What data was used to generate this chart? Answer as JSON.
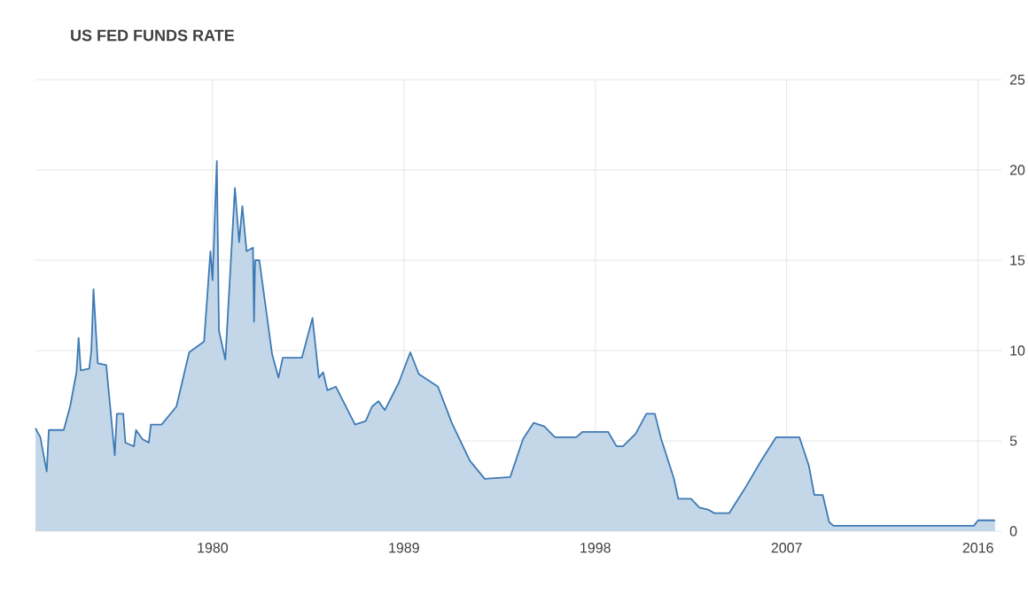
{
  "chart_data": {
    "type": "area",
    "title": "US FED FUNDS RATE",
    "x": [
      1971.67,
      1971.9,
      1972.2,
      1972.3,
      1973.0,
      1973.3,
      1973.6,
      1973.7,
      1973.8,
      1974.2,
      1974.3,
      1974.4,
      1974.6,
      1975.0,
      1975.4,
      1975.5,
      1975.8,
      1975.9,
      1976.3,
      1976.4,
      1976.7,
      1977.0,
      1977.1,
      1977.6,
      1978.3,
      1978.9,
      1979.6,
      1979.9,
      1980.0,
      1980.2,
      1980.3,
      1980.6,
      1980.8,
      1981.05,
      1981.25,
      1981.4,
      1981.6,
      1981.9,
      1981.95,
      1982.0,
      1982.2,
      1982.5,
      1982.8,
      1983.1,
      1983.3,
      1984.2,
      1984.7,
      1985.0,
      1985.2,
      1985.4,
      1985.8,
      1986.7,
      1987.2,
      1987.5,
      1987.8,
      1988.1,
      1988.75,
      1989.3,
      1989.7,
      1990.6,
      1991.25,
      1992.1,
      1992.8,
      1994.0,
      1994.6,
      1995.1,
      1995.6,
      1996.1,
      1997.1,
      1997.4,
      1998.6,
      1999.0,
      1999.3,
      1999.9,
      2000.4,
      2000.8,
      2001.1,
      2001.7,
      2001.9,
      2002.5,
      2002.9,
      2003.3,
      2003.6,
      2004.3,
      2005.0,
      2005.8,
      2006.5,
      2007.6,
      2008.05,
      2008.3,
      2008.7,
      2009.0,
      2009.2,
      2015.8,
      2016.0,
      2016.8
    ],
    "series": [
      {
        "color": "#3d7ab5",
        "values": [
          5.7,
          5.2,
          3.3,
          5.6,
          5.6,
          6.9,
          8.8,
          10.7,
          8.9,
          9.0,
          10.0,
          13.4,
          9.3,
          9.2,
          4.2,
          6.5,
          6.5,
          4.9,
          4.7,
          5.6,
          5.1,
          4.9,
          5.9,
          5.9,
          6.9,
          9.9,
          10.5,
          15.5,
          13.9,
          20.5,
          11.1,
          9.5,
          13.7,
          19.0,
          16.0,
          18.0,
          15.5,
          15.7,
          11.6,
          15.0,
          15.0,
          12.4,
          9.8,
          8.5,
          9.6,
          9.6,
          11.8,
          8.5,
          8.8,
          7.8,
          8.0,
          5.9,
          6.1,
          6.9,
          7.2,
          6.7,
          8.2,
          9.9,
          8.7,
          8.0,
          6.0,
          3.9,
          2.9,
          3.0,
          5.1,
          6.0,
          5.8,
          5.2,
          5.2,
          5.5,
          5.5,
          4.7,
          4.7,
          5.4,
          6.5,
          6.5,
          5.1,
          2.9,
          1.8,
          1.8,
          1.3,
          1.2,
          1.0,
          1.0,
          2.3,
          3.9,
          5.2,
          5.2,
          3.6,
          2.0,
          2.0,
          0.5,
          0.3,
          0.3,
          0.6,
          0.6
        ]
      }
    ],
    "xlim": [
      1971.67,
      2017.1
    ],
    "xticks": [
      1980,
      1989,
      1998,
      2007,
      2016
    ],
    "ylim": [
      0,
      25
    ],
    "yticks": [
      0,
      5,
      10,
      15,
      20,
      25
    ],
    "grid": true
  }
}
